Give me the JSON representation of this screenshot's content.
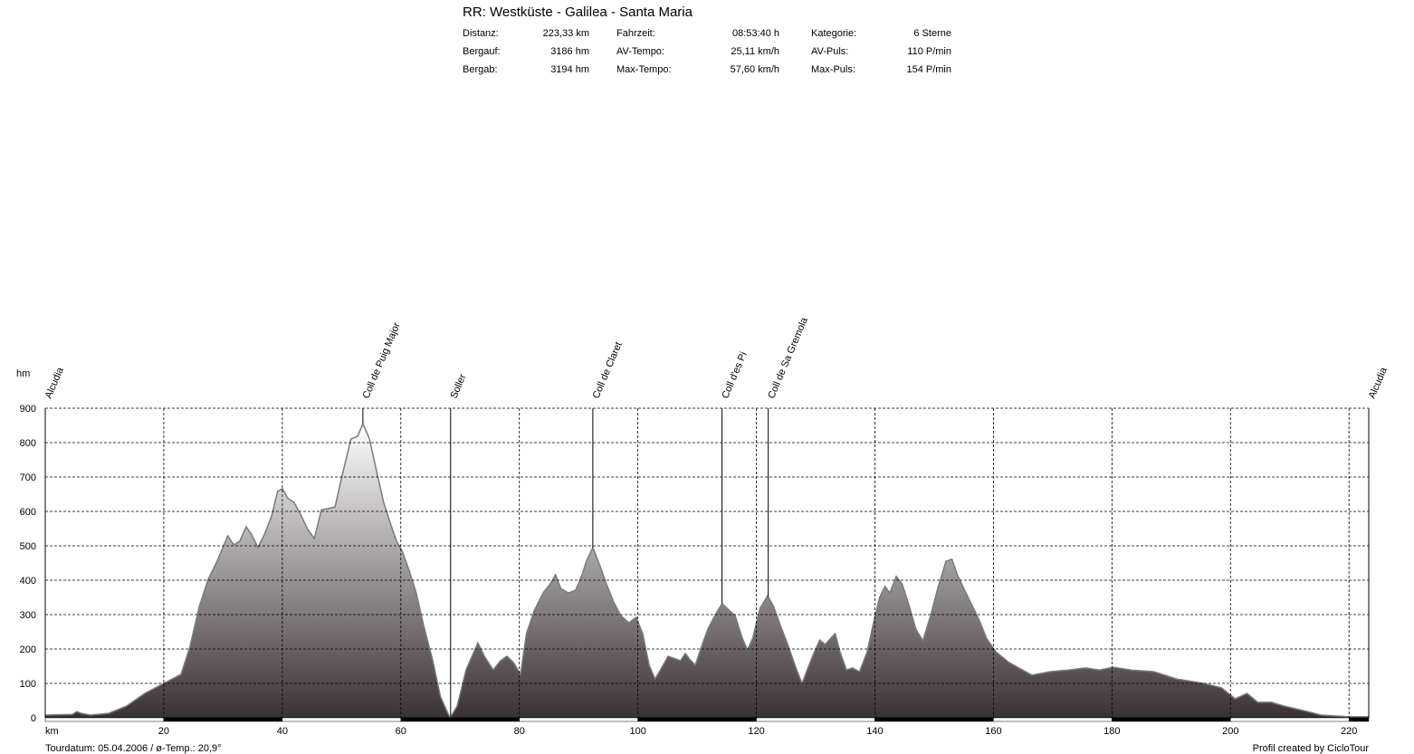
{
  "header": {
    "title": "RR: Westküste - Galilea - Santa Maria",
    "stats": [
      {
        "label": "Distanz:",
        "value": "223,33 km"
      },
      {
        "label": "Bergauf:",
        "value": "3186 hm"
      },
      {
        "label": "Bergab:",
        "value": "3194 hm"
      },
      {
        "label": "Fahrzeit:",
        "value": "08:53:40 h"
      },
      {
        "label": "AV-Tempo:",
        "value": "25,11 km/h"
      },
      {
        "label": "Max-Tempo:",
        "value": "57,60 km/h"
      },
      {
        "label": "Kategorie:",
        "value": "6 Sterne"
      },
      {
        "label": "AV-Puls:",
        "value": "110 P/min"
      },
      {
        "label": "Max-Puls:",
        "value": "154 P/min"
      }
    ]
  },
  "footer": {
    "left": "Tourdatum: 05.04.2006  /  ø-Temp.: 20,9°",
    "right": "Profil created by CicloTour"
  },
  "colors": {
    "fill_top": "#ffffff",
    "fill_bottom": "#3a3133",
    "outline": "#7a7a7a"
  },
  "chart_data": {
    "type": "area",
    "xlabel": "km",
    "ylabel": "hm",
    "xlim": [
      0,
      223.33
    ],
    "ylim": [
      0,
      900
    ],
    "xticks": [
      20,
      40,
      60,
      80,
      100,
      120,
      140,
      160,
      180,
      200,
      220
    ],
    "yticks": [
      0,
      100,
      200,
      300,
      400,
      500,
      600,
      700,
      800,
      900
    ],
    "grid": true,
    "waypoints": [
      {
        "name": "Alcudia",
        "km": 0
      },
      {
        "name": "Coll de Puig Major",
        "km": 53.6
      },
      {
        "name": "Soller",
        "km": 68.4
      },
      {
        "name": "Coll de Claret",
        "km": 92.4
      },
      {
        "name": "Coll d'es Pi",
        "km": 114.2
      },
      {
        "name": "Coll de Sa Gremola",
        "km": 122
      },
      {
        "name": "Alcudia",
        "km": 223.33
      }
    ],
    "points": [
      [
        0,
        8
      ],
      [
        4.6,
        10
      ],
      [
        5.3,
        18
      ],
      [
        6.1,
        13
      ],
      [
        7.6,
        8
      ],
      [
        10.7,
        13
      ],
      [
        13.7,
        34
      ],
      [
        16.8,
        71
      ],
      [
        20,
        100
      ],
      [
        22.9,
        126
      ],
      [
        24.4,
        205
      ],
      [
        26,
        324
      ],
      [
        27.5,
        403
      ],
      [
        29,
        455
      ],
      [
        30.8,
        529
      ],
      [
        31.8,
        503
      ],
      [
        32.8,
        513
      ],
      [
        33.9,
        555
      ],
      [
        34.8,
        534
      ],
      [
        35.9,
        495
      ],
      [
        37,
        534
      ],
      [
        38.2,
        587
      ],
      [
        39.2,
        658
      ],
      [
        40,
        666
      ],
      [
        40.9,
        639
      ],
      [
        42,
        626
      ],
      [
        43.2,
        587
      ],
      [
        44.3,
        547
      ],
      [
        45.4,
        521
      ],
      [
        46.6,
        605
      ],
      [
        47.6,
        608
      ],
      [
        48.9,
        613
      ],
      [
        50.1,
        705
      ],
      [
        51.6,
        811
      ],
      [
        52.7,
        818
      ],
      [
        53.6,
        855
      ],
      [
        54.7,
        811
      ],
      [
        55.9,
        718
      ],
      [
        57.1,
        626
      ],
      [
        58.3,
        561
      ],
      [
        59.3,
        513
      ],
      [
        60.3,
        482
      ],
      [
        61.4,
        429
      ],
      [
        62.6,
        363
      ],
      [
        63.8,
        271
      ],
      [
        65.4,
        166
      ],
      [
        66.7,
        61
      ],
      [
        68.3,
        0
      ],
      [
        69.5,
        34
      ],
      [
        71,
        139
      ],
      [
        73,
        218
      ],
      [
        74.1,
        179
      ],
      [
        75.6,
        139
      ],
      [
        76.8,
        166
      ],
      [
        77.9,
        179
      ],
      [
        79,
        161
      ],
      [
        80.2,
        126
      ],
      [
        81.2,
        245
      ],
      [
        82.5,
        311
      ],
      [
        84,
        363
      ],
      [
        85.2,
        389
      ],
      [
        86.1,
        416
      ],
      [
        87,
        376
      ],
      [
        88.3,
        363
      ],
      [
        89.5,
        371
      ],
      [
        90.6,
        416
      ],
      [
        91.3,
        455
      ],
      [
        92.4,
        495
      ],
      [
        93.6,
        442
      ],
      [
        94.7,
        389
      ],
      [
        95.9,
        337
      ],
      [
        97.1,
        297
      ],
      [
        98.5,
        276
      ],
      [
        99.7,
        292
      ],
      [
        100.8,
        245
      ],
      [
        101.9,
        153
      ],
      [
        102.9,
        113
      ],
      [
        103.8,
        139
      ],
      [
        105.1,
        179
      ],
      [
        106.4,
        171
      ],
      [
        107.2,
        166
      ],
      [
        108,
        187
      ],
      [
        108.7,
        171
      ],
      [
        109.7,
        153
      ],
      [
        110.7,
        205
      ],
      [
        111.8,
        258
      ],
      [
        113,
        297
      ],
      [
        114.2,
        332
      ],
      [
        115.5,
        311
      ],
      [
        116.4,
        297
      ],
      [
        117.6,
        232
      ],
      [
        118.5,
        197
      ],
      [
        119.4,
        232
      ],
      [
        120.6,
        318
      ],
      [
        121.9,
        355
      ],
      [
        122.9,
        324
      ],
      [
        124,
        271
      ],
      [
        125.2,
        218
      ],
      [
        126.8,
        139
      ],
      [
        127.7,
        100
      ],
      [
        128.7,
        145
      ],
      [
        129.8,
        192
      ],
      [
        130.7,
        226
      ],
      [
        131.6,
        213
      ],
      [
        132.6,
        232
      ],
      [
        133.3,
        245
      ],
      [
        134.1,
        192
      ],
      [
        135.2,
        139
      ],
      [
        136.2,
        145
      ],
      [
        137.4,
        134
      ],
      [
        138.7,
        192
      ],
      [
        139.7,
        271
      ],
      [
        140.8,
        350
      ],
      [
        141.7,
        382
      ],
      [
        142.5,
        363
      ],
      [
        143.6,
        411
      ],
      [
        144.6,
        389
      ],
      [
        145.8,
        324
      ],
      [
        146.9,
        258
      ],
      [
        148.1,
        224
      ],
      [
        149.4,
        297
      ],
      [
        150.6,
        376
      ],
      [
        152,
        455
      ],
      [
        153,
        461
      ],
      [
        153.9,
        416
      ],
      [
        155,
        376
      ],
      [
        156.1,
        337
      ],
      [
        157.6,
        284
      ],
      [
        158.8,
        232
      ],
      [
        160.4,
        192
      ],
      [
        162.6,
        161
      ],
      [
        164.9,
        139
      ],
      [
        166.5,
        124
      ],
      [
        169.5,
        134
      ],
      [
        172.6,
        139
      ],
      [
        175.6,
        145
      ],
      [
        177.9,
        139
      ],
      [
        180.2,
        147
      ],
      [
        183.3,
        139
      ],
      [
        187.1,
        134
      ],
      [
        190.9,
        113
      ],
      [
        195.5,
        100
      ],
      [
        198.5,
        87
      ],
      [
        200.8,
        55
      ],
      [
        202.8,
        71
      ],
      [
        204.6,
        45
      ],
      [
        206.9,
        45
      ],
      [
        209.1,
        34
      ],
      [
        212.3,
        21
      ],
      [
        215.3,
        8
      ],
      [
        219.9,
        3
      ],
      [
        223.33,
        3
      ]
    ]
  }
}
